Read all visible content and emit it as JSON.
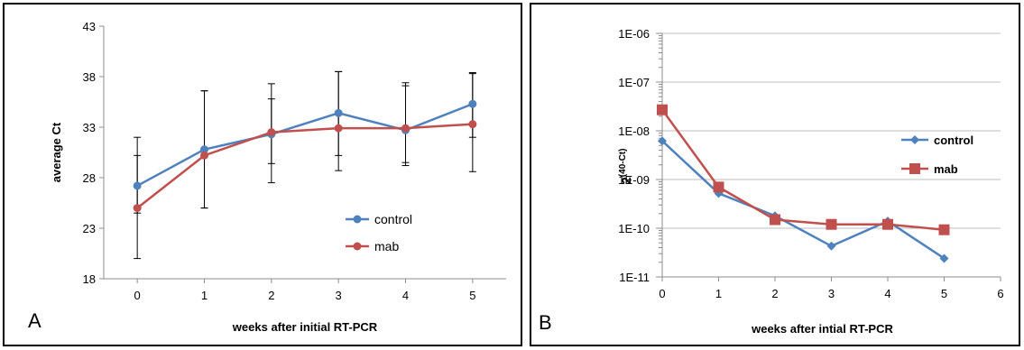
{
  "panels": {
    "a_letter": "A",
    "b_letter": "B"
  },
  "chart_data": [
    {
      "type": "line",
      "panel": "A",
      "title": "",
      "xlabel": "weeks after initial RT-PCR",
      "ylabel": "average Ct",
      "x": [
        0,
        1,
        2,
        3,
        4,
        5
      ],
      "xlim": [
        -0.5,
        5.5
      ],
      "ylim": [
        18,
        43
      ],
      "yticks": [
        18,
        23,
        28,
        33,
        38,
        43
      ],
      "xticks": [
        0,
        1,
        2,
        3,
        4,
        5
      ],
      "grid": "none",
      "legend_position": "lower-right",
      "series": [
        {
          "name": "control",
          "color": "#4f81bd",
          "marker": "circle",
          "values": [
            27.2,
            30.8,
            32.3,
            34.4,
            32.7,
            35.3
          ],
          "error_bars": [
            [
              24.5,
              30.2
            ],
            [
              25.0,
              36.6
            ],
            [
              29.4,
              35.8
            ],
            [
              30.2,
              38.5
            ],
            [
              29.2,
              37.4
            ],
            [
              32.0,
              38.4
            ]
          ]
        },
        {
          "name": "mab",
          "color": "#c0504d",
          "marker": "circle",
          "values": [
            25.0,
            30.2,
            32.5,
            32.9,
            32.9,
            33.3
          ],
          "error_bars": [
            [
              20.0,
              32.0
            ],
            [
              25.0,
              36.6
            ],
            [
              27.5,
              37.3
            ],
            [
              28.7,
              38.5
            ],
            [
              29.5,
              37.1
            ],
            [
              28.6,
              38.3
            ]
          ]
        }
      ]
    },
    {
      "type": "line",
      "panel": "B",
      "title": "",
      "xlabel": "weeks after intial RT-PCR",
      "ylabel_base": "2",
      "ylabel_exponent": "(40-Ct)",
      "y_scale": "log",
      "x": [
        0,
        1,
        2,
        3,
        4,
        5
      ],
      "xlim": [
        0,
        6
      ],
      "xticks": [
        0,
        1,
        2,
        3,
        4,
        5,
        6
      ],
      "ylim": [
        1e-11,
        1e-06
      ],
      "ytick_values": [
        1e-11,
        1e-10,
        1e-09,
        1e-08,
        1e-07,
        1e-06
      ],
      "ytick_labels": [
        "1E-11",
        "1E-10",
        "1E-09",
        "1E-08",
        "1E-07",
        "1E-06"
      ],
      "grid": "on",
      "legend_position": "right",
      "series": [
        {
          "name": "control",
          "color": "#4f81bd",
          "marker": "diamond",
          "values": [
            6.2e-09,
            5.2e-10,
            1.8e-10,
            4.3e-11,
            1.4e-10,
            2.4e-11
          ]
        },
        {
          "name": "mab",
          "color": "#c0504d",
          "marker": "square",
          "values": [
            2.7e-08,
            7e-10,
            1.5e-10,
            1.2e-10,
            1.2e-10,
            9.3e-11
          ]
        }
      ]
    }
  ]
}
